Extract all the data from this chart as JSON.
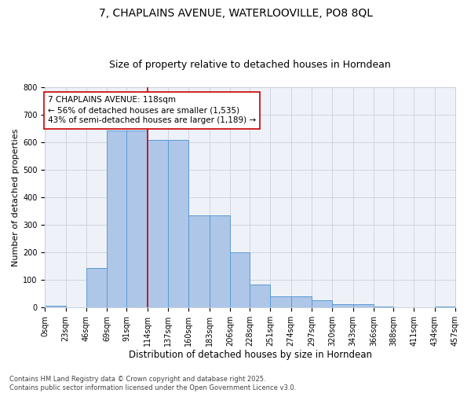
{
  "title1": "7, CHAPLAINS AVENUE, WATERLOOVILLE, PO8 8QL",
  "title2": "Size of property relative to detached houses in Horndean",
  "xlabel": "Distribution of detached houses by size in Horndean",
  "ylabel": "Number of detached properties",
  "bar_values": [
    5,
    2,
    145,
    645,
    645,
    610,
    610,
    335,
    335,
    200,
    85,
    42,
    42,
    25,
    12,
    12,
    3,
    0,
    0,
    3
  ],
  "bin_edges": [
    0,
    23,
    46,
    69,
    91,
    114,
    137,
    160,
    183,
    206,
    228,
    251,
    274,
    297,
    320,
    343,
    366,
    388,
    411,
    434,
    457
  ],
  "xtick_labels": [
    "0sqm",
    "23sqm",
    "46sqm",
    "69sqm",
    "91sqm",
    "114sqm",
    "137sqm",
    "160sqm",
    "183sqm",
    "206sqm",
    "228sqm",
    "251sqm",
    "274sqm",
    "297sqm",
    "320sqm",
    "343sqm",
    "366sqm",
    "388sqm",
    "411sqm",
    "434sqm",
    "457sqm"
  ],
  "bar_color": "#aec6e8",
  "bar_edge_color": "#5b9bd5",
  "vline_x": 114,
  "vline_color": "#cc0000",
  "annotation_text": "7 CHAPLAINS AVENUE: 118sqm\n← 56% of detached houses are smaller (1,535)\n43% of semi-detached houses are larger (1,189) →",
  "annotation_box_color": "#cc0000",
  "ylim": [
    0,
    800
  ],
  "yticks": [
    0,
    100,
    200,
    300,
    400,
    500,
    600,
    700,
    800
  ],
  "grid_color": "#c8d0dc",
  "bg_color": "#eef2f8",
  "footer_text": "Contains HM Land Registry data © Crown copyright and database right 2025.\nContains public sector information licensed under the Open Government Licence v3.0.",
  "title1_fontsize": 10,
  "title2_fontsize": 9,
  "xlabel_fontsize": 8.5,
  "ylabel_fontsize": 8,
  "tick_fontsize": 7,
  "annotation_fontsize": 7.5,
  "footer_fontsize": 6
}
